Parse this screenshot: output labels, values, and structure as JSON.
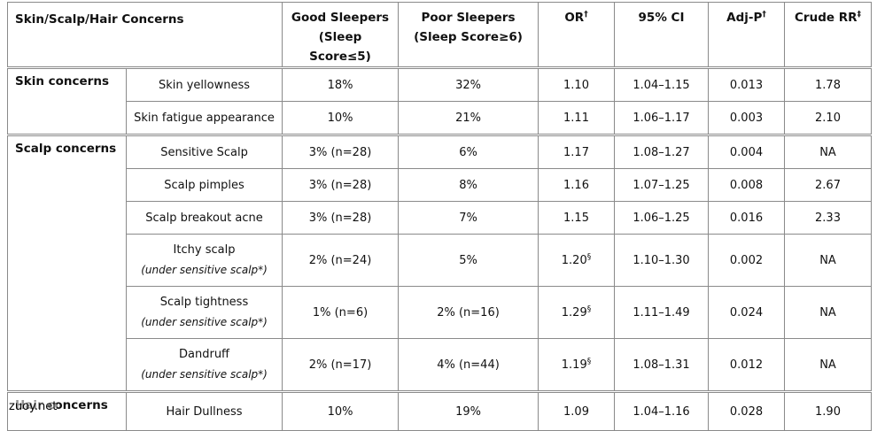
{
  "table": {
    "headers": {
      "concern": "Skin/Scalp/Hair Concerns",
      "good": [
        "Good Sleepers",
        "(Sleep Score≤5)"
      ],
      "poor": [
        "Poor Sleepers",
        "(Sleep Score≥6)"
      ],
      "or": "OR",
      "or_mark": "†",
      "ci": "95% CI",
      "adjp": "Adj-P",
      "adjp_mark": "†",
      "rr": "Crude RR",
      "rr_mark": "‡"
    },
    "groups": [
      {
        "name": "Skin concerns",
        "rows": [
          {
            "item": "Skin yellowness",
            "note": "",
            "good": "18%",
            "poor": "32%",
            "or": "1.10",
            "or_mark": "",
            "ci": "1.04–1.15",
            "adjp": "0.013",
            "rr": "1.78"
          },
          {
            "item": "Skin fatigue appearance",
            "note": "",
            "good": "10%",
            "poor": "21%",
            "or": "1.11",
            "or_mark": "",
            "ci": "1.06–1.17",
            "adjp": "0.003",
            "rr": "2.10"
          }
        ]
      },
      {
        "name": "Scalp concerns",
        "rows": [
          {
            "item": "Sensitive Scalp",
            "note": "",
            "good": "3% (n=28)",
            "poor": "6%",
            "or": "1.17",
            "or_mark": "",
            "ci": "1.08–1.27",
            "adjp": "0.004",
            "rr": "NA"
          },
          {
            "item": "Scalp pimples",
            "note": "",
            "good": "3% (n=28)",
            "poor": "8%",
            "or": "1.16",
            "or_mark": "",
            "ci": "1.07–1.25",
            "adjp": "0.008",
            "rr": "2.67"
          },
          {
            "item": "Scalp breakout acne",
            "note": "",
            "good": "3% (n=28)",
            "poor": "7%",
            "or": "1.15",
            "or_mark": "",
            "ci": "1.06–1.25",
            "adjp": "0.016",
            "rr": "2.33"
          },
          {
            "item": "Itchy scalp",
            "note": "(under sensitive scalp*)",
            "good": "2% (n=24)",
            "poor": "5%",
            "or": "1.20",
            "or_mark": "§",
            "ci": "1.10–1.30",
            "adjp": "0.002",
            "rr": "NA"
          },
          {
            "item": "Scalp tightness",
            "note": "(under sensitive scalp*)",
            "good": "1% (n=6)",
            "poor": "2% (n=16)",
            "or": "1.29",
            "or_mark": "§",
            "ci": "1.11–1.49",
            "adjp": "0.024",
            "rr": "NA"
          },
          {
            "item": "Dandruff",
            "note": "(under sensitive scalp*)",
            "good": "2% (n=17)",
            "poor": "4% (n=44)",
            "or": "1.19",
            "or_mark": "§",
            "ci": "1.08–1.31",
            "adjp": "0.012",
            "rr": "NA"
          }
        ]
      },
      {
        "name": "Hair concerns",
        "rows": [
          {
            "item": "Hair Dullness",
            "note": "",
            "good": "10%",
            "poor": "19%",
            "or": "1.09",
            "or_mark": "",
            "ci": "1.04–1.16",
            "adjp": "0.028",
            "rr": "1.90"
          }
        ]
      }
    ]
  },
  "watermark": "zuoy.net"
}
